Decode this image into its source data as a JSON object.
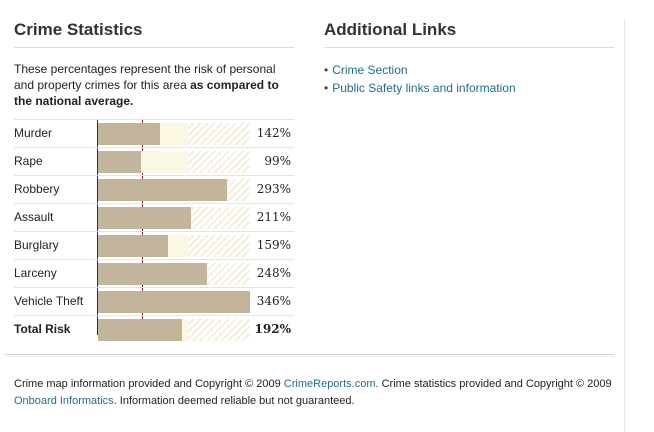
{
  "crime_stats": {
    "heading": "Crime Statistics",
    "intro_plain": "These percentages represent the risk of personal and property crimes for this area ",
    "intro_bold": "as compared to the national average."
  },
  "links": {
    "heading": "Additional Links",
    "items": [
      {
        "label": "Crime Section"
      },
      {
        "label": "Public Safety links and information"
      }
    ]
  },
  "footer": {
    "text1": "Crime map information provided and Copyright © 2009 ",
    "link1": "CrimeReports.com",
    "text2": ". Crime statistics provided and Copyright © 2009 ",
    "link2": "Onboard Informatics",
    "text3": ". Information deemed reliable but not guaranteed."
  },
  "colors": {
    "bar": "#c2b59b",
    "average_line": "#8b2f2f",
    "link": "#1f6e8c"
  },
  "chart_data": {
    "type": "bar",
    "orientation": "horizontal",
    "categories": [
      "Murder",
      "Rape",
      "Robbery",
      "Assault",
      "Burglary",
      "Larceny",
      "Vehicle Theft",
      "Total Risk"
    ],
    "values": [
      142,
      99,
      293,
      211,
      159,
      248,
      346,
      192
    ],
    "value_labels": [
      "142%",
      "99%",
      "293%",
      "211%",
      "159%",
      "248%",
      "346%",
      "192%"
    ],
    "unit": "%",
    "reference_line": 100,
    "xlim": [
      0,
      346
    ],
    "emphasized_category": "Total Risk"
  }
}
